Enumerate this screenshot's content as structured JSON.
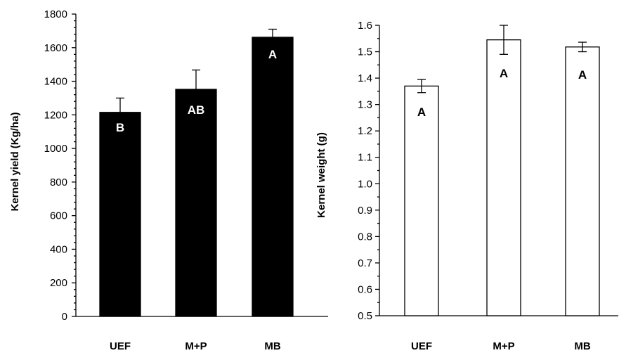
{
  "chart_data": [
    {
      "type": "bar",
      "categories": [
        "UEF",
        "M+P",
        "MB"
      ],
      "values": [
        1215,
        1352,
        1662
      ],
      "errors": [
        85,
        115,
        48
      ],
      "bar_labels": [
        "B",
        "AB",
        "A"
      ],
      "ylabel": "Kernel yield (Kg/ha)",
      "ylim": [
        0,
        1800
      ],
      "yticks": [
        "0",
        "200",
        "400",
        "600",
        "800",
        "1000",
        "1200",
        "1400",
        "1600",
        "1800"
      ],
      "bar_color": "#000000",
      "label_color": "#ffffff",
      "grid": false
    },
    {
      "type": "bar",
      "categories": [
        "UEF",
        "M+P",
        "MB"
      ],
      "values": [
        1.37,
        1.545,
        1.518
      ],
      "errors": [
        0.025,
        0.055,
        0.018
      ],
      "bar_labels": [
        "A",
        "A",
        "A"
      ],
      "ylabel": "Kernel weight (g)",
      "ylim": [
        0.5,
        1.6
      ],
      "yticks": [
        "0.5",
        "0.6",
        "0.7",
        "0.8",
        "0.9",
        "1.0",
        "1.1",
        "1.2",
        "1.3",
        "1.4",
        "1.5",
        "1.6"
      ],
      "bar_color": "#ffffff",
      "label_color": "#000000",
      "grid": false
    }
  ]
}
